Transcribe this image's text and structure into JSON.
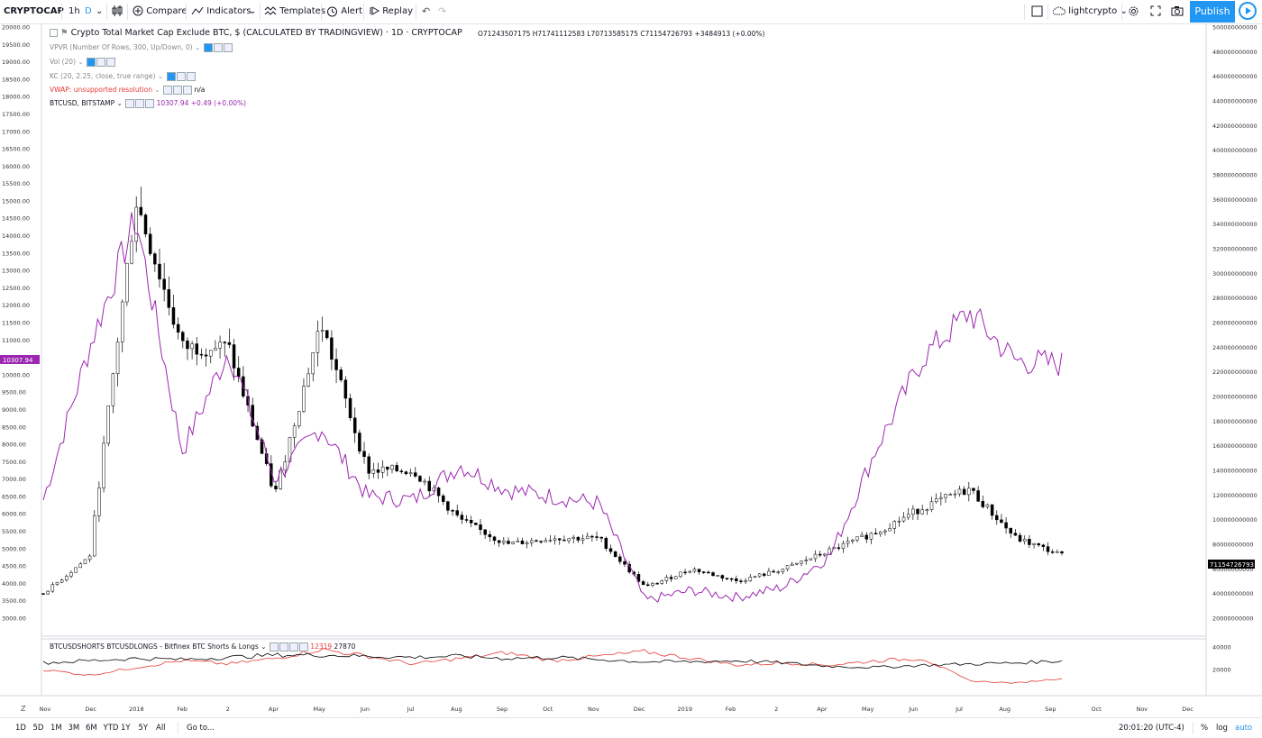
{
  "toolbar": {
    "symbol": "CRYPTOCAP",
    "interval": "1h",
    "interval_active": "D",
    "compare": "Compare",
    "indicators": "Indicators",
    "templates": "Templates",
    "alert": "Alert",
    "replay": "Replay",
    "user": "lightcrypto",
    "publish": "Publish"
  },
  "legend": {
    "title": "Crypto Total Market Cap Exclude BTC, $ (CALCULATED BY TRADINGVIEW) · 1D · CRYPTOCAP",
    "ohlc": "O71243507175  H71741112583  L70713585175  C71154726793  +3484913 (+0.00%)",
    "vpvr": "VPVR (Number Of Rows, 300, Up/Down, 0)",
    "vol": "Vol (20)",
    "kc": "KC (20, 2.25, close, true range)",
    "vwap": "VWAP: unsupported resolution",
    "vwap_value": "n/a",
    "btcusd": "BTCUSD, BITSTAMP",
    "btcusd_value": "10307.94  +0.49 (+0.00%)",
    "sub_title": "BTCUSDSHORTS BTCUSDLONGS - Bitfinex BTC Shorts & Longs",
    "sub_shorts": "12319",
    "sub_longs": "27870"
  },
  "left_axis": {
    "ticks": [
      "20000.00",
      "19500.00",
      "19000.00",
      "18500.00",
      "18000.00",
      "17500.00",
      "17000.00",
      "16500.00",
      "16000.00",
      "15500.00",
      "15000.00",
      "14500.00",
      "14000.00",
      "13500.00",
      "13000.00",
      "12500.00",
      "12000.00",
      "11500.00",
      "11000.00",
      "10500.00",
      "10000.00",
      "9500.00",
      "9000.00",
      "8500.00",
      "8000.00",
      "7500.00",
      "7000.00",
      "6500.00",
      "6000.00",
      "5500.00",
      "5000.00",
      "4500.00",
      "4000.00",
      "3500.00",
      "3000.00"
    ],
    "current_label": "10307.94",
    "current_color": "#9c27b0"
  },
  "right_axis": {
    "ticks": [
      "500000000000",
      "480000000000",
      "460000000000",
      "440000000000",
      "420000000000",
      "400000000000",
      "380000000000",
      "360000000000",
      "340000000000",
      "320000000000",
      "300000000000",
      "280000000000",
      "260000000000",
      "240000000000",
      "220000000000",
      "200000000000",
      "180000000000",
      "160000000000",
      "140000000000",
      "120000000000",
      "100000000000",
      "80000000000",
      "60000000000",
      "40000000000",
      "20000000000"
    ],
    "current_label": "71154726793",
    "current_color": "#000000"
  },
  "sub_axis": {
    "ticks": [
      "40000",
      "20000"
    ]
  },
  "time_axis": {
    "labels": [
      "Nov",
      "Dec",
      "2018",
      "Feb",
      "2",
      "Apr",
      "May",
      "Jun",
      "Jul",
      "Aug",
      "Sep",
      "Oct",
      "Nov",
      "Dec",
      "2019",
      "Feb",
      "2",
      "Apr",
      "May",
      "Jun",
      "Jul",
      "Aug",
      "Sep",
      "Oct",
      "Nov",
      "Dec"
    ]
  },
  "bottom": {
    "ranges": [
      "1D",
      "5D",
      "1M",
      "3M",
      "6M",
      "YTD",
      "1Y",
      "5Y",
      "All"
    ],
    "goto": "Go to...",
    "clock": "20:01:20 (UTC-4)",
    "percent": "%",
    "log": "log",
    "auto": "auto"
  },
  "colors": {
    "btc_line": "#9c27b0",
    "candles": "#000000",
    "shorts": "#e53935",
    "longs": "#000000",
    "accent": "#2196f3"
  },
  "chart_data": {
    "type": "line",
    "title": "Crypto Total Market Cap Exclude BTC, $ (CALCULATED BY TRADINGVIEW) · 1D · CRYPTOCAP",
    "x": [
      "Nov 2017",
      "Dec 2017",
      "2018",
      "Feb 2018",
      "Mar 2018",
      "Apr 2018",
      "May 2018",
      "Jun 2018",
      "Jul 2018",
      "Aug 2018",
      "Sep 2018",
      "Oct 2018",
      "Nov 2018",
      "Dec 2018",
      "2019",
      "Feb 2019",
      "Mar 2019",
      "Apr 2019",
      "May 2019",
      "Jun 2019",
      "Jul 2019",
      "Aug 2019",
      "Sep 2019"
    ],
    "series": [
      {
        "name": "BTCUSD, BITSTAMP",
        "axis": "left",
        "values": [
          6400,
          10800,
          14500,
          7800,
          10700,
          7000,
          8500,
          6500,
          6400,
          7400,
          6700,
          6500,
          6300,
          3500,
          3800,
          3600,
          3900,
          4800,
          7900,
          10500,
          11800,
          10400,
          10307.94
        ]
      },
      {
        "name": "Crypto Total Market Cap Exclude BTC, $ (CALCULATED BY TRADINGVIEW) · 1D · CRYPTOCAP",
        "axis": "right",
        "values": [
          40000000000,
          70000000000,
          360000000000,
          240000000000,
          240000000000,
          120000000000,
          260000000000,
          140000000000,
          140000000000,
          100000000000,
          80000000000,
          85000000000,
          85000000000,
          45000000000,
          60000000000,
          50000000000,
          60000000000,
          75000000000,
          90000000000,
          110000000000,
          125000000000,
          85000000000,
          71154726793
        ]
      }
    ],
    "sub_series": [
      {
        "name": "BTCUSDSHORTS",
        "values": [
          20000,
          15000,
          22000,
          28000,
          25000,
          30000,
          38000,
          32000,
          25000,
          30000,
          35000,
          28000,
          32000,
          36000,
          30000,
          24000,
          26000,
          24000,
          28000,
          30000,
          10000,
          8000,
          12319
        ]
      },
      {
        "name": "BTCUSDLONGS",
        "values": [
          26000,
          28000,
          30000,
          29000,
          31000,
          33000,
          33000,
          32000,
          31000,
          32000,
          30000,
          31000,
          29000,
          27000,
          27000,
          28000,
          26000,
          23000,
          22000,
          24000,
          25000,
          26000,
          27870
        ]
      }
    ],
    "ylim_left": [
      3000,
      20000
    ],
    "ylim_right": [
      20000000000,
      500000000000
    ],
    "grid": false
  }
}
